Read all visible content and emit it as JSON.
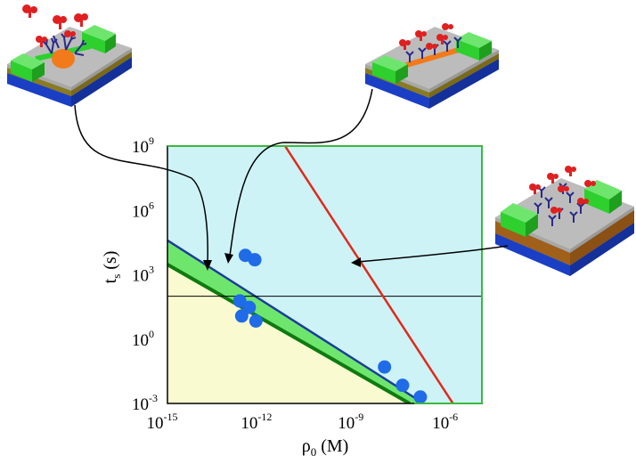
{
  "chart_data": {
    "type": "scatter",
    "title": "",
    "xlabel": {
      "base": "ρ",
      "sub": "0",
      "unit": " (M)"
    },
    "ylabel": {
      "base": "t",
      "sub": "s",
      "unit": " (s)"
    },
    "x_scale": "log",
    "y_scale": "log",
    "xlim": [
      1e-15,
      1e-05
    ],
    "ylim": [
      0.001,
      1000000000.0
    ],
    "x_ticks": [
      {
        "value": 1e-15,
        "base": "10",
        "exp": "-15"
      },
      {
        "value": 1e-12,
        "base": "10",
        "exp": "-12"
      },
      {
        "value": 1e-09,
        "base": "10",
        "exp": "-9"
      },
      {
        "value": 1e-06,
        "base": "10",
        "exp": "-6"
      }
    ],
    "y_ticks": [
      {
        "value": 0.001,
        "base": "10",
        "exp": "-3"
      },
      {
        "value": 1.0,
        "base": "10",
        "exp": "0"
      },
      {
        "value": 1000.0,
        "base": "10",
        "exp": "3"
      },
      {
        "value": 1000000.0,
        "base": "10",
        "exp": "6"
      },
      {
        "value": 1000000000.0,
        "base": "10",
        "exp": "9"
      }
    ],
    "reference_line_y": 100,
    "regions": [
      {
        "name": "upper",
        "color": "#cdf3f7"
      },
      {
        "name": "lower",
        "color": "#fafad0"
      }
    ],
    "nanowire_band": {
      "color": "#6ee66e",
      "upper_edge": [
        [
          1e-15,
          40000
        ],
        [
          1.4e-07,
          0.001
        ]
      ],
      "lower_edge": [
        [
          1e-15,
          3000
        ],
        [
          5e-08,
          0.001
        ]
      ],
      "blue_edge_color": "#1a3d9a",
      "dark_edge_color": "#0f7a0f"
    },
    "planar_line": {
      "color": "#e02a1a",
      "points": [
        [
          5.5e-12,
          1000000000.0
        ],
        [
          1.2e-06,
          0.001
        ]
      ]
    },
    "series": [
      {
        "color": "#1f6be8",
        "points": [
          [
            3e-13,
            8000
          ],
          [
            6e-13,
            5000
          ],
          [
            2e-13,
            60
          ],
          [
            4e-13,
            30
          ],
          [
            2.3e-13,
            12
          ],
          [
            6.5e-13,
            7
          ],
          [
            8e-09,
            0.05
          ],
          [
            3e-08,
            0.007
          ],
          [
            1.1e-07,
            0.002
          ]
        ]
      }
    ],
    "insets": [
      {
        "name": "nanodot-sensor"
      },
      {
        "name": "nanowire-sensor"
      },
      {
        "name": "planar-sensor"
      }
    ]
  }
}
